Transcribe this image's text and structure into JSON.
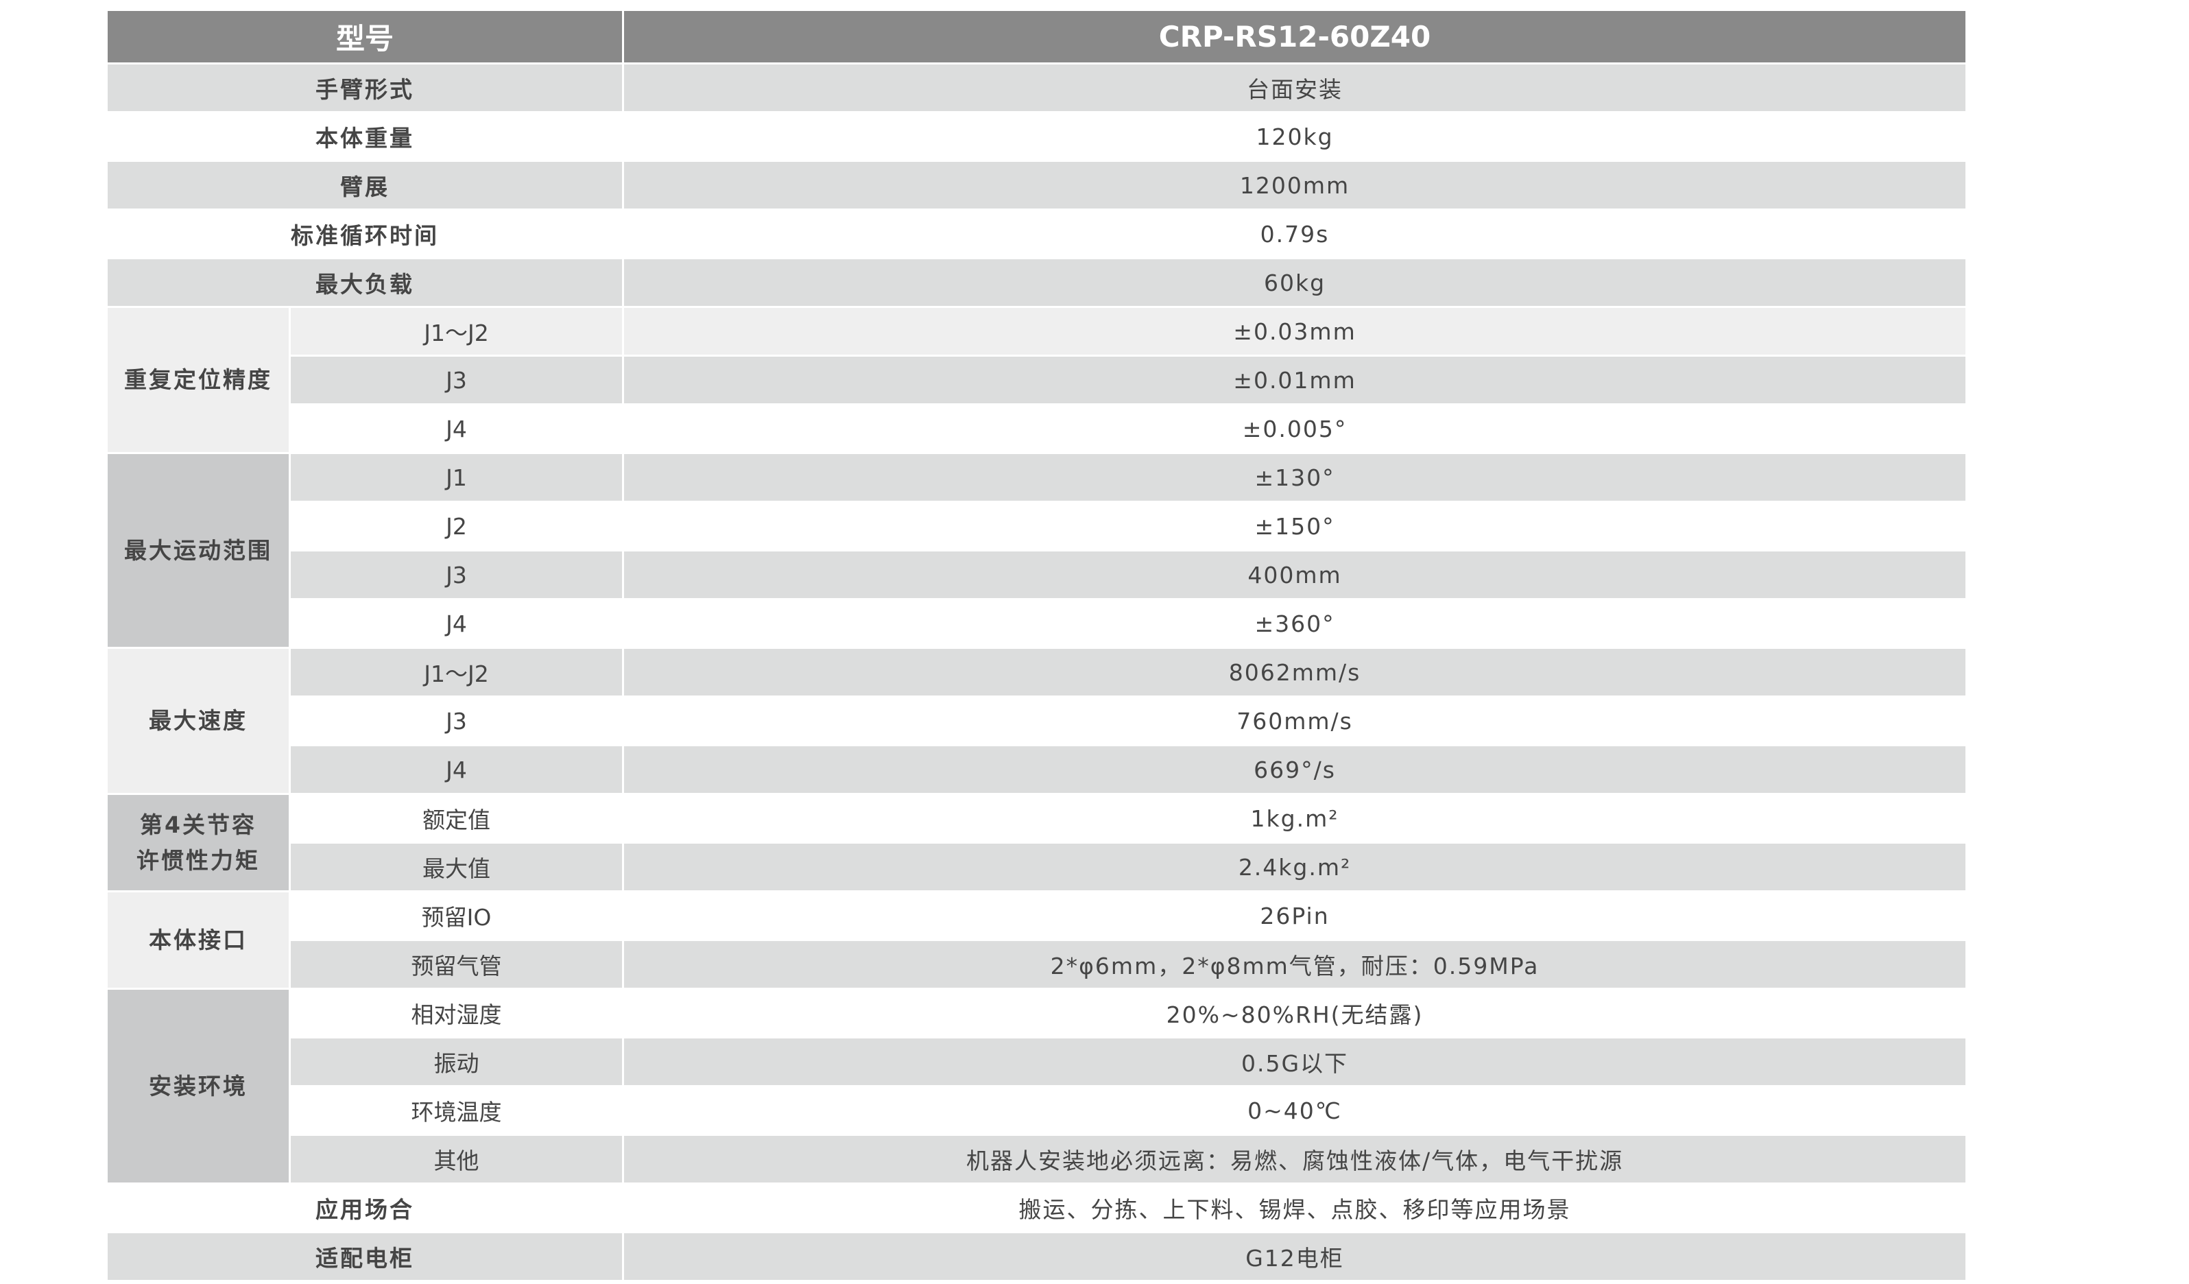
{
  "header": {
    "label": "型号",
    "model": "CRP-RS12-60Z40"
  },
  "colors": {
    "header": "#898989",
    "stripe": "#dcdddd",
    "group_light": "#efefef",
    "group_dark": "#c9cacb"
  },
  "rows": [
    {
      "label": "手臂形式",
      "value": "台面安装"
    },
    {
      "label": "本体重量",
      "value": "120kg"
    },
    {
      "label": "臂展",
      "value": "1200mm"
    },
    {
      "label": "标准循环时间",
      "value": "0.79s"
    },
    {
      "label": "最大负载",
      "value": "60kg"
    },
    {
      "group": "重复定位精度",
      "items": [
        {
          "label": "J1～J2",
          "value": "±0.03mm"
        },
        {
          "label": "J3",
          "value": "±0.01mm"
        },
        {
          "label": "J4",
          "value": "±0.005°"
        }
      ]
    },
    {
      "group": "最大运动范围",
      "items": [
        {
          "label": "J1",
          "value": "±130°"
        },
        {
          "label": "J2",
          "value": "±150°"
        },
        {
          "label": "J3",
          "value": "400mm"
        },
        {
          "label": "J4",
          "value": "±360°"
        }
      ]
    },
    {
      "group": "最大速度",
      "items": [
        {
          "label": "J1～J2",
          "value": "8062mm/s"
        },
        {
          "label": "J3",
          "value": "760mm/s"
        },
        {
          "label": "J4",
          "value": "669°/s"
        }
      ]
    },
    {
      "group": "第4关节容许惯性力矩",
      "items": [
        {
          "label": "额定值",
          "value": "1kg.m²"
        },
        {
          "label": "最大值",
          "value": "2.4kg.m²"
        }
      ]
    },
    {
      "group": "本体接口",
      "items": [
        {
          "label": "预留IO",
          "value": "26Pin"
        },
        {
          "label": "预留气管",
          "value": "2*φ6mm，2*φ8mm气管，耐压：0.59MPa"
        }
      ]
    },
    {
      "group": "安装环境",
      "items": [
        {
          "label": "相对湿度",
          "value": "20%~80%RH(无结露)"
        },
        {
          "label": "振动",
          "value": "0.5G以下"
        },
        {
          "label": "环境温度",
          "value": "0~40℃"
        },
        {
          "label": "其他",
          "value": "机器人安装地必须远离：易燃、腐蚀性液体/气体，电气干扰源"
        }
      ]
    },
    {
      "label": "应用场合",
      "value": "搬运、分拣、上下料、锡焊、点胶、移印等应用场景"
    },
    {
      "label": "适配电柜",
      "value": "G12电柜"
    }
  ]
}
